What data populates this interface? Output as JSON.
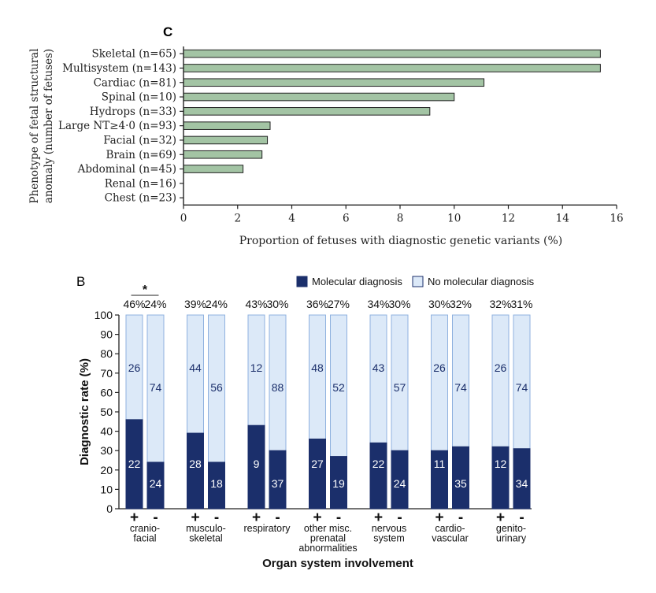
{
  "chart_data": [
    {
      "type": "bar",
      "orientation": "horizontal",
      "panel_label": "C",
      "categories": [
        "Skeletal (n=65)",
        "Multisystem (n=143)",
        "Cardiac (n=81)",
        "Spinal (n=10)",
        "Hydrops (n=33)",
        "Large NT≥4·0 (n=93)",
        "Facial (n=32)",
        "Brain (n=69)",
        "Abdominal (n=45)",
        "Renal (n=16)",
        "Chest (n=23)"
      ],
      "values": [
        15.4,
        15.4,
        11.1,
        10.0,
        9.1,
        3.2,
        3.1,
        2.9,
        2.2,
        0,
        0
      ],
      "xlabel": "Proportion of fetuses with diagnostic genetic variants (%)",
      "ylabel": [
        "Phenotype of fetal structural",
        "anomaly (number of fetuses)"
      ],
      "xlim": [
        0,
        16
      ],
      "xticks": [
        0,
        2,
        4,
        6,
        8,
        10,
        12,
        14,
        16
      ],
      "grid": false,
      "bar_color": "#a3c4a4"
    },
    {
      "type": "bar",
      "orientation": "vertical-stacked",
      "panel_label": "B",
      "ylabel": "Diagnostic rate (%)",
      "xlabel": "Organ system involvement",
      "ylim": [
        0,
        100
      ],
      "yticks": [
        0,
        10,
        20,
        30,
        40,
        50,
        60,
        70,
        80,
        90,
        100
      ],
      "legend_position": "top-right",
      "legend": [
        {
          "name": "Molecular diagnosis",
          "color": "#1b2f6b"
        },
        {
          "name": "No molecular diagnosis",
          "color": "#dce9f8"
        }
      ],
      "groups": [
        {
          "label": [
            "cranio-",
            "facial"
          ],
          "significance": "*",
          "bars": [
            {
              "sign": "+",
              "percent_label": "46%",
              "rate": 46,
              "dx": 22,
              "ndx": 26
            },
            {
              "sign": "-",
              "percent_label": "24%",
              "rate": 24,
              "dx": 24,
              "ndx": 74
            }
          ]
        },
        {
          "label": [
            "musculo-",
            "skeletal"
          ],
          "significance": "",
          "bars": [
            {
              "sign": "+",
              "percent_label": "39%",
              "rate": 39,
              "dx": 28,
              "ndx": 44
            },
            {
              "sign": "-",
              "percent_label": "24%",
              "rate": 24,
              "dx": 18,
              "ndx": 56
            }
          ]
        },
        {
          "label": [
            "respiratory"
          ],
          "significance": "",
          "bars": [
            {
              "sign": "+",
              "percent_label": "43%",
              "rate": 43,
              "dx": 9,
              "ndx": 12
            },
            {
              "sign": "-",
              "percent_label": "30%",
              "rate": 30,
              "dx": 37,
              "ndx": 88
            }
          ]
        },
        {
          "label": [
            "other misc.",
            "prenatal",
            "abnormalities"
          ],
          "significance": "",
          "bars": [
            {
              "sign": "+",
              "percent_label": "36%",
              "rate": 36,
              "dx": 27,
              "ndx": 48
            },
            {
              "sign": "-",
              "percent_label": "27%",
              "rate": 27,
              "dx": 19,
              "ndx": 52
            }
          ]
        },
        {
          "label": [
            "nervous",
            "system"
          ],
          "significance": "",
          "bars": [
            {
              "sign": "+",
              "percent_label": "34%",
              "rate": 34,
              "dx": 22,
              "ndx": 43
            },
            {
              "sign": "-",
              "percent_label": "30%",
              "rate": 30,
              "dx": 24,
              "ndx": 57
            }
          ]
        },
        {
          "label": [
            "cardio-",
            "vascular"
          ],
          "significance": "",
          "bars": [
            {
              "sign": "+",
              "percent_label": "30%",
              "rate": 30,
              "dx": 11,
              "ndx": 26
            },
            {
              "sign": "-",
              "percent_label": "32%",
              "rate": 32,
              "dx": 35,
              "ndx": 74
            }
          ]
        },
        {
          "label": [
            "genito-",
            "urinary"
          ],
          "significance": "",
          "bars": [
            {
              "sign": "+",
              "percent_label": "32%",
              "rate": 32,
              "dx": 12,
              "ndx": 26
            },
            {
              "sign": "-",
              "percent_label": "31%",
              "rate": 31,
              "dx": 34,
              "ndx": 74
            }
          ]
        }
      ]
    }
  ]
}
